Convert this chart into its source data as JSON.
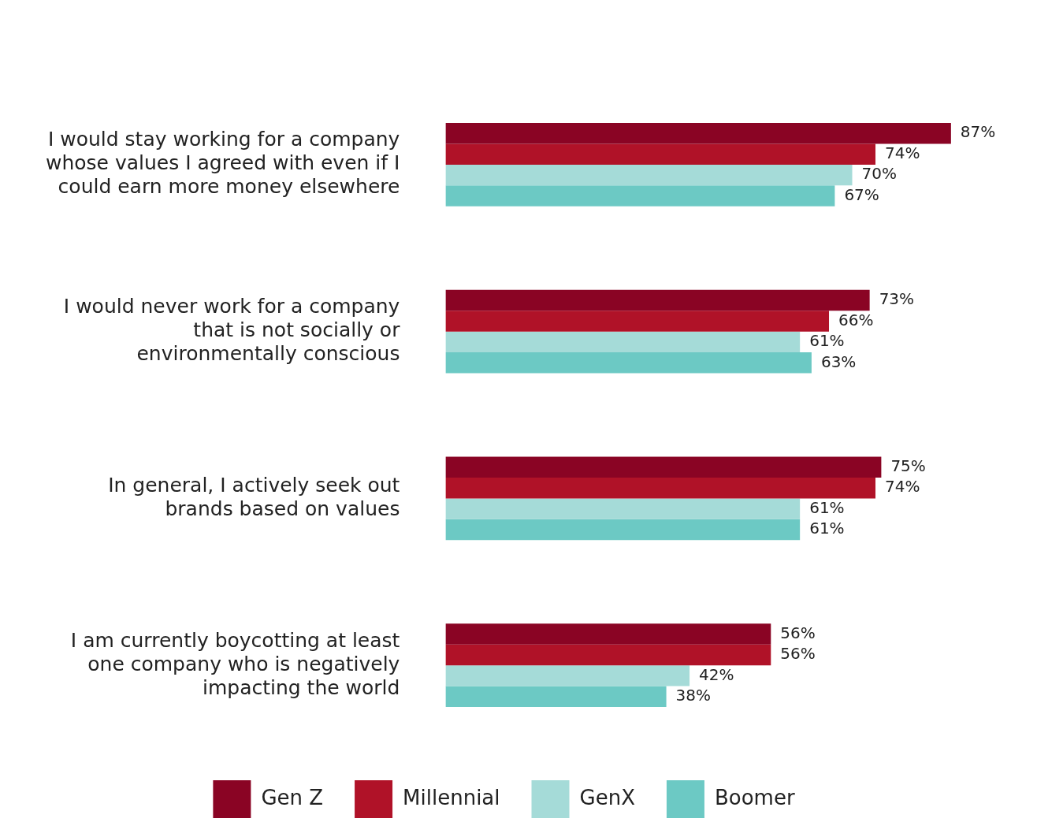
{
  "chart_data": {
    "type": "bar",
    "orientation": "horizontal",
    "categories": [
      "I would stay working for a company whose values I agreed with even if I could earn more money elsewhere",
      "I would never work for a company that is not socially or environmentally conscious",
      "In general, I actively seek out brands based on values",
      "I am currently boycotting at least one company who is negatively impacting the world"
    ],
    "series": [
      {
        "name": "Gen Z",
        "color": "#8a0424",
        "values": [
          87,
          73,
          75,
          56
        ],
        "value_labels": [
          "87%",
          "73%",
          "75%",
          "56%"
        ]
      },
      {
        "name": "Millennial",
        "color": "#b01228",
        "values": [
          74,
          66,
          74,
          56
        ],
        "value_labels": [
          "74%",
          "66%",
          "74%",
          "56%"
        ]
      },
      {
        "name": "GenX",
        "color": "#a5dbd8",
        "values": [
          70,
          61,
          61,
          42
        ],
        "value_labels": [
          "70%",
          "61%",
          "61%",
          "42%"
        ]
      },
      {
        "name": "Boomer",
        "color": "#6cc9c4",
        "values": [
          67,
          63,
          61,
          38
        ],
        "value_labels": [
          "67%",
          "63%",
          "61%",
          "38%"
        ]
      }
    ],
    "legend": "bottom",
    "grid": false
  }
}
